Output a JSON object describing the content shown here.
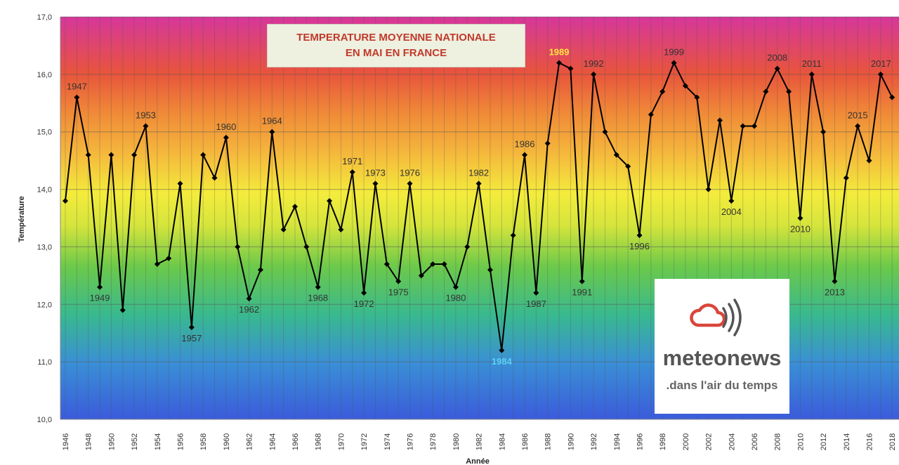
{
  "chart_data": {
    "type": "line",
    "title_lines": [
      "TEMPERATURE MOYENNE NATIONALE",
      "EN MAI EN FRANCE"
    ],
    "xlabel": "Année",
    "ylabel": "Température",
    "ylim": [
      10.0,
      17.0
    ],
    "y_ticks": [
      "10,0",
      "11,0",
      "12,0",
      "13,0",
      "14,0",
      "15,0",
      "16,0",
      "17,0"
    ],
    "x_ticks": [
      "1946",
      "1948",
      "1950",
      "1952",
      "1954",
      "1956",
      "1958",
      "1960",
      "1962",
      "1964",
      "1966",
      "1968",
      "1970",
      "1972",
      "1974",
      "1976",
      "1978",
      "1980",
      "1982",
      "1984",
      "1986",
      "1988",
      "1990",
      "1992",
      "1994",
      "1996",
      "1998",
      "2000",
      "2002",
      "2004",
      "2006",
      "2008",
      "2010",
      "2012",
      "2014",
      "2016",
      "2018"
    ],
    "grid": true,
    "background": "rainbow gradient (blue bottom to magenta top)",
    "series": [
      {
        "color": "#000000",
        "x": [
          1946,
          1947,
          1948,
          1949,
          1950,
          1951,
          1952,
          1953,
          1954,
          1955,
          1956,
          1957,
          1958,
          1959,
          1960,
          1961,
          1962,
          1963,
          1964,
          1965,
          1966,
          1967,
          1968,
          1969,
          1970,
          1971,
          1972,
          1973,
          1974,
          1975,
          1976,
          1977,
          1978,
          1979,
          1980,
          1981,
          1982,
          1983,
          1984,
          1985,
          1986,
          1987,
          1988,
          1989,
          1990,
          1991,
          1992,
          1993,
          1994,
          1995,
          1996,
          1997,
          1998,
          1999,
          2000,
          2001,
          2002,
          2003,
          2004,
          2005,
          2006,
          2007,
          2008,
          2009,
          2010,
          2011,
          2012,
          2013,
          2014,
          2015,
          2016,
          2017,
          2018
        ],
        "values": [
          13.8,
          15.6,
          14.6,
          12.3,
          14.6,
          11.9,
          14.6,
          15.1,
          12.7,
          12.8,
          14.1,
          11.6,
          14.6,
          14.2,
          14.9,
          13.0,
          12.1,
          12.6,
          15.0,
          13.3,
          13.7,
          13.0,
          12.3,
          13.8,
          13.3,
          14.3,
          12.2,
          14.1,
          12.7,
          12.4,
          14.1,
          12.5,
          12.7,
          12.7,
          12.3,
          13.0,
          14.1,
          12.6,
          11.2,
          13.2,
          14.6,
          12.2,
          14.8,
          16.2,
          16.1,
          12.4,
          16.0,
          15.0,
          14.6,
          14.4,
          13.2,
          15.3,
          15.7,
          16.2,
          15.8,
          15.6,
          14.0,
          15.2,
          13.8,
          15.1,
          15.1,
          15.7,
          16.1,
          15.7,
          13.5,
          16.0,
          15.0,
          12.4,
          14.2,
          15.1,
          14.5,
          16.0,
          15.6
        ]
      }
    ],
    "annotations": [
      {
        "text": "1947",
        "x": 1947,
        "pos": "above",
        "color": "#333333"
      },
      {
        "text": "1949",
        "x": 1949,
        "pos": "below",
        "color": "#333333"
      },
      {
        "text": "1953",
        "x": 1953,
        "pos": "above",
        "color": "#333333"
      },
      {
        "text": "1957",
        "x": 1957,
        "pos": "below",
        "color": "#333333"
      },
      {
        "text": "1960",
        "x": 1960,
        "pos": "above",
        "color": "#333333"
      },
      {
        "text": "1962",
        "x": 1962,
        "pos": "below",
        "color": "#333333"
      },
      {
        "text": "1964",
        "x": 1964,
        "pos": "above",
        "color": "#333333"
      },
      {
        "text": "1968",
        "x": 1968,
        "pos": "below",
        "color": "#333333"
      },
      {
        "text": "1971",
        "x": 1971,
        "pos": "above",
        "color": "#333333"
      },
      {
        "text": "1972",
        "x": 1972,
        "pos": "below",
        "color": "#333333"
      },
      {
        "text": "1973",
        "x": 1973,
        "pos": "above",
        "color": "#333333"
      },
      {
        "text": "1975",
        "x": 1975,
        "pos": "below",
        "color": "#333333"
      },
      {
        "text": "1976",
        "x": 1976,
        "pos": "above",
        "color": "#333333"
      },
      {
        "text": "1980",
        "x": 1980,
        "pos": "below",
        "color": "#333333"
      },
      {
        "text": "1982",
        "x": 1982,
        "pos": "above",
        "color": "#333333"
      },
      {
        "text": "1984",
        "x": 1984,
        "pos": "below",
        "color": "#5bd3f5"
      },
      {
        "text": "1986",
        "x": 1986,
        "pos": "above",
        "color": "#333333"
      },
      {
        "text": "1987",
        "x": 1987,
        "pos": "below",
        "color": "#333333"
      },
      {
        "text": "1989",
        "x": 1989,
        "pos": "above",
        "color": "#ffe640"
      },
      {
        "text": "1991",
        "x": 1991,
        "pos": "below",
        "color": "#333333"
      },
      {
        "text": "1992",
        "x": 1992,
        "pos": "above",
        "color": "#333333"
      },
      {
        "text": "1996",
        "x": 1996,
        "pos": "below",
        "color": "#333333"
      },
      {
        "text": "1999",
        "x": 1999,
        "pos": "above",
        "color": "#333333"
      },
      {
        "text": "2004",
        "x": 2004,
        "pos": "below",
        "color": "#333333"
      },
      {
        "text": "2008",
        "x": 2008,
        "pos": "above",
        "color": "#333333"
      },
      {
        "text": "2010",
        "x": 2010,
        "pos": "below",
        "color": "#333333"
      },
      {
        "text": "2011",
        "x": 2011,
        "pos": "above",
        "color": "#333333"
      },
      {
        "text": "2013",
        "x": 2013,
        "pos": "below",
        "color": "#333333"
      },
      {
        "text": "2015",
        "x": 2015,
        "pos": "above",
        "color": "#333333"
      },
      {
        "text": "2017",
        "x": 2017,
        "pos": "above",
        "color": "#333333"
      }
    ]
  },
  "logo": {
    "brand": "meteonews",
    "tagline": ".dans l'air du temps",
    "icon": "cloud-signal-icon",
    "icon_color": "#d9463a"
  }
}
